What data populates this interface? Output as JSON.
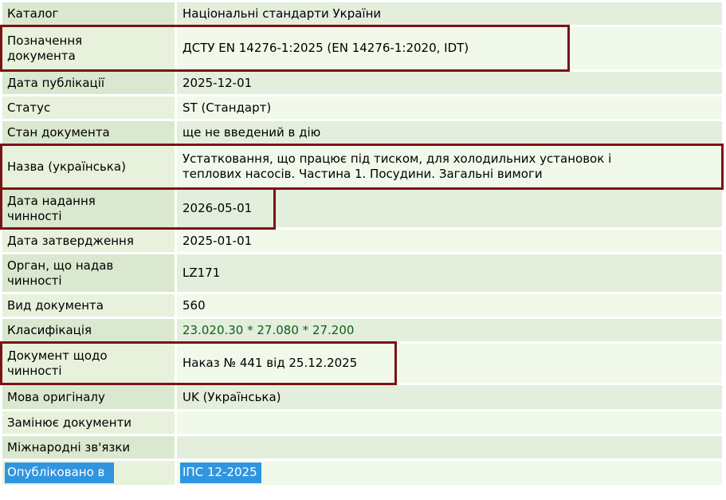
{
  "page": {
    "description": "Document properties card of a Ukrainian national standard catalog entry",
    "background": "#ffffff"
  },
  "colors": {
    "label_cell_dark": "#d9e8ce",
    "label_cell_light": "#e7f1db",
    "value_cell_dark": "#e3eedd",
    "value_cell_light": "#f1f9ea",
    "text": "#000000",
    "classification_link_green": "#105f14",
    "annotation_box_maroon": "#7b1316",
    "selection_background_blue": "#3095e0",
    "selection_text": "#ffffff"
  },
  "table": {
    "rows": [
      {
        "id": "catalog",
        "label": "Каталог",
        "value": "Національні стандарти України"
      },
      {
        "id": "designation",
        "label": "Позначення\nдокумента",
        "value": "ДСТУ EN 14276-1:2025 (EN 14276-1:2020, IDT)",
        "boxed": true
      },
      {
        "id": "publication-date",
        "label": "Дата публікації",
        "value": "2025-12-01"
      },
      {
        "id": "status",
        "label": "Статус",
        "value": "ST (Стандарт)"
      },
      {
        "id": "document-state",
        "label": "Стан документа",
        "value": "ще не введений в дію"
      },
      {
        "id": "title-ukrainian",
        "label": "Назва (українська)",
        "value": "Устатковання, що працює під тиском, для холодильних установок і\nтеплових насосів. Частина 1. Посудини. Загальні вимоги",
        "boxed": true
      },
      {
        "id": "effective-date",
        "label": "Дата надання\nчинності",
        "value": "2026-05-01",
        "boxed": true
      },
      {
        "id": "approval-date",
        "label": "Дата затвердження",
        "value": "2025-01-01"
      },
      {
        "id": "granting-authority",
        "label": "Орган, що надав\nчинності",
        "value": "LZ171"
      },
      {
        "id": "document-kind",
        "label": "Вид документа",
        "value": "560"
      },
      {
        "id": "classification",
        "label": "Класифікація",
        "codes": [
          "23.020.30",
          "27.080",
          "27.200"
        ],
        "separator": " * "
      },
      {
        "id": "validity-document",
        "label": "Документ щодо\nчинності",
        "value": "Наказ № 441 від 25.12.2025",
        "boxed": true
      },
      {
        "id": "original-language",
        "label": "Мова оригіналу",
        "value": "UK (Українська)"
      },
      {
        "id": "replaces-documents",
        "label": "Замінює документи",
        "value": ""
      },
      {
        "id": "international-relations",
        "label": "Міжнародні зв'язки",
        "value": ""
      },
      {
        "id": "published-in",
        "label": "Опубліковано в",
        "value": "ІПС 12-2025",
        "selected": true
      }
    ]
  }
}
